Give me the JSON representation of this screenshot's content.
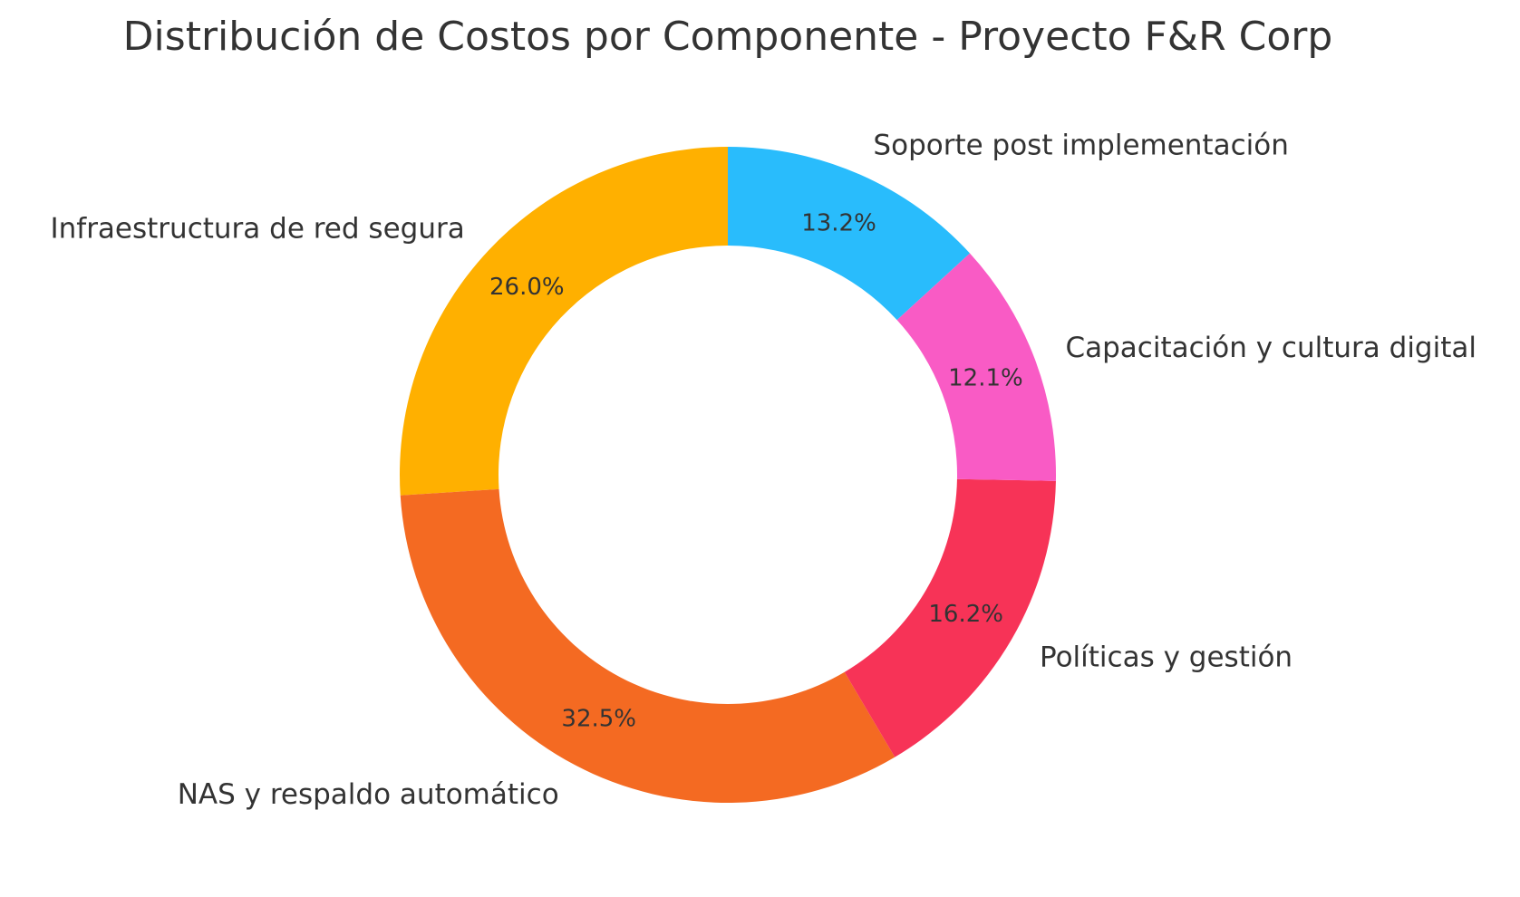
{
  "chart_data": {
    "type": "pie",
    "variant": "donut",
    "title": "Distribución de Costos por Componente - Proyecto F&R Corp",
    "start_angle_deg": 90,
    "direction": "counterclockwise",
    "slices": [
      {
        "label": "Infraestructura de red segura",
        "value": 26.0,
        "pct_label": "26.0%",
        "color": "#ffb000"
      },
      {
        "label": "NAS y respaldo automático",
        "value": 32.5,
        "pct_label": "32.5%",
        "color": "#f46a22"
      },
      {
        "label": "Políticas y gestión",
        "value": 16.2,
        "pct_label": "16.2%",
        "color": "#f73357"
      },
      {
        "label": "Capacitación y cultura digital",
        "value": 12.1,
        "pct_label": "12.1%",
        "color": "#f95bc5"
      },
      {
        "label": "Soporte post implementación",
        "value": 13.2,
        "pct_label": "13.2%",
        "color": "#29bcfc"
      }
    ]
  }
}
